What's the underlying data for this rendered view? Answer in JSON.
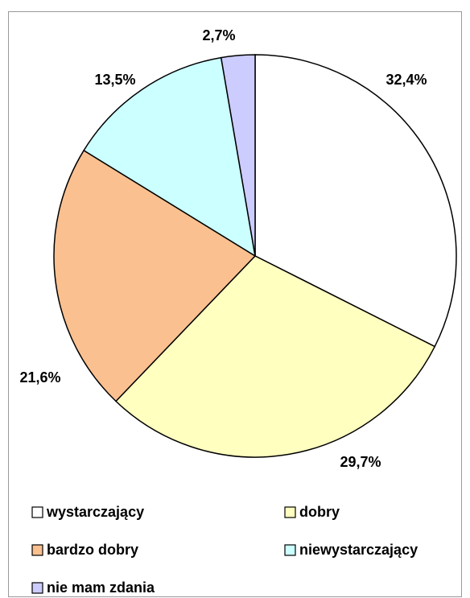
{
  "chart_data": {
    "type": "pie",
    "categories": [
      "wystarczający",
      "dobry",
      "bardzo dobry",
      "niewystarczający",
      "nie mam zdania"
    ],
    "values": [
      32.4,
      29.7,
      21.6,
      13.5,
      2.7
    ],
    "value_labels": [
      "32,4%",
      "29,7%",
      "21,6%",
      "13,5%",
      "2,7%"
    ],
    "colors": [
      "#ffffff",
      "#ffffc0",
      "#fac090",
      "#ccffff",
      "#ccccff"
    ],
    "legend": "bottom"
  }
}
